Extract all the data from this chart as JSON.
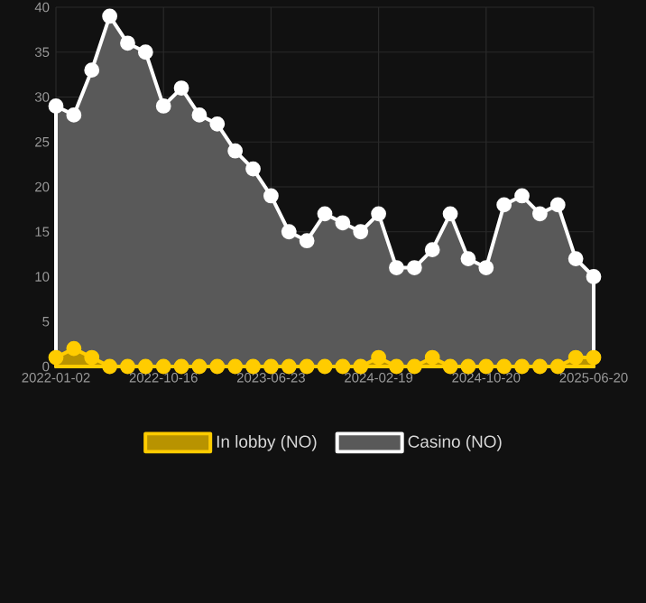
{
  "chart_data": {
    "type": "area",
    "categories": [
      "2022-01-02",
      null,
      null,
      null,
      null,
      null,
      "2022-10-16",
      null,
      null,
      null,
      null,
      null,
      "2023-06-23",
      null,
      null,
      null,
      null,
      null,
      "2024-02-19",
      null,
      null,
      null,
      null,
      null,
      "2024-10-20",
      null,
      null,
      null,
      null,
      null,
      "2025-06-20"
    ],
    "series": [
      {
        "name": "In lobby (NO)",
        "color": "#ffcc00",
        "values": [
          1,
          2,
          1,
          0,
          0,
          0,
          0,
          0,
          0,
          0,
          0,
          0,
          0,
          0,
          0,
          0,
          0,
          0,
          1,
          0,
          0,
          1,
          0,
          0,
          0,
          0,
          0,
          0,
          0,
          1,
          1
        ]
      },
      {
        "name": "Casino (NO)",
        "color": "#ffffff",
        "values": [
          29,
          28,
          33,
          39,
          36,
          35,
          29,
          31,
          28,
          27,
          24,
          22,
          19,
          15,
          14,
          17,
          16,
          15,
          17,
          11,
          11,
          13,
          17,
          12,
          11,
          18,
          19,
          17,
          18,
          12,
          10
        ]
      }
    ],
    "ylim": [
      0,
      40
    ],
    "yticks": [
      0,
      5,
      10,
      15,
      20,
      25,
      30,
      35,
      40
    ],
    "grid": true,
    "legend": "bottom",
    "marker": "circle",
    "line_style": "solid"
  }
}
